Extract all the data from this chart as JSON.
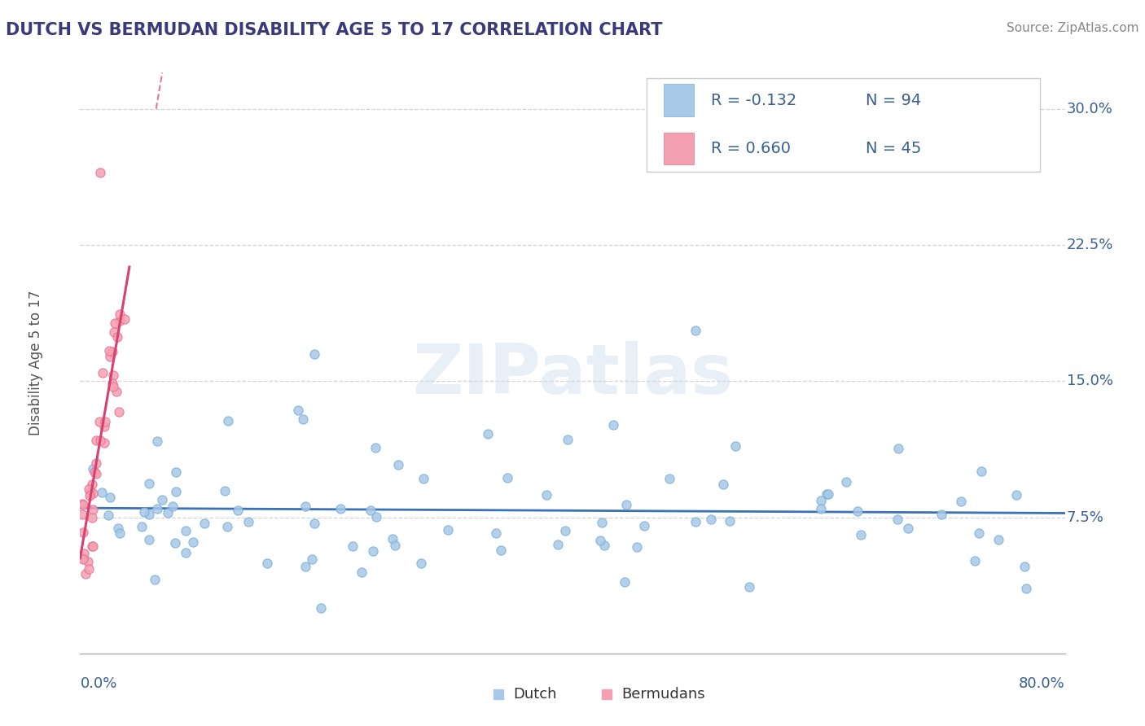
{
  "title": "DUTCH VS BERMUDAN DISABILITY AGE 5 TO 17 CORRELATION CHART",
  "source_text": "Source: ZipAtlas.com",
  "ylabel": "Disability Age 5 to 17",
  "xlim": [
    0.0,
    0.8
  ],
  "ylim": [
    0.0,
    0.32
  ],
  "ytick_vals": [
    0.075,
    0.15,
    0.225,
    0.3
  ],
  "ytick_labels": [
    "7.5%",
    "15.0%",
    "22.5%",
    "30.0%"
  ],
  "dutch_R": -0.132,
  "dutch_N": 94,
  "bermuda_R": 0.66,
  "bermuda_N": 45,
  "dutch_color": "#a8c8e8",
  "dutch_edge_color": "#7aaed6",
  "bermuda_color": "#f4a0b0",
  "bermuda_edge_color": "#e87090",
  "dutch_line_color": "#3a72b8",
  "bermuda_line_color": "#d84070",
  "background_color": "#ffffff",
  "grid_color": "#c8c8c8",
  "title_color": "#3a3a7a",
  "axis_label_color": "#3a6090",
  "watermark": "ZIPatlas",
  "legend_text_color": "#3a6090"
}
